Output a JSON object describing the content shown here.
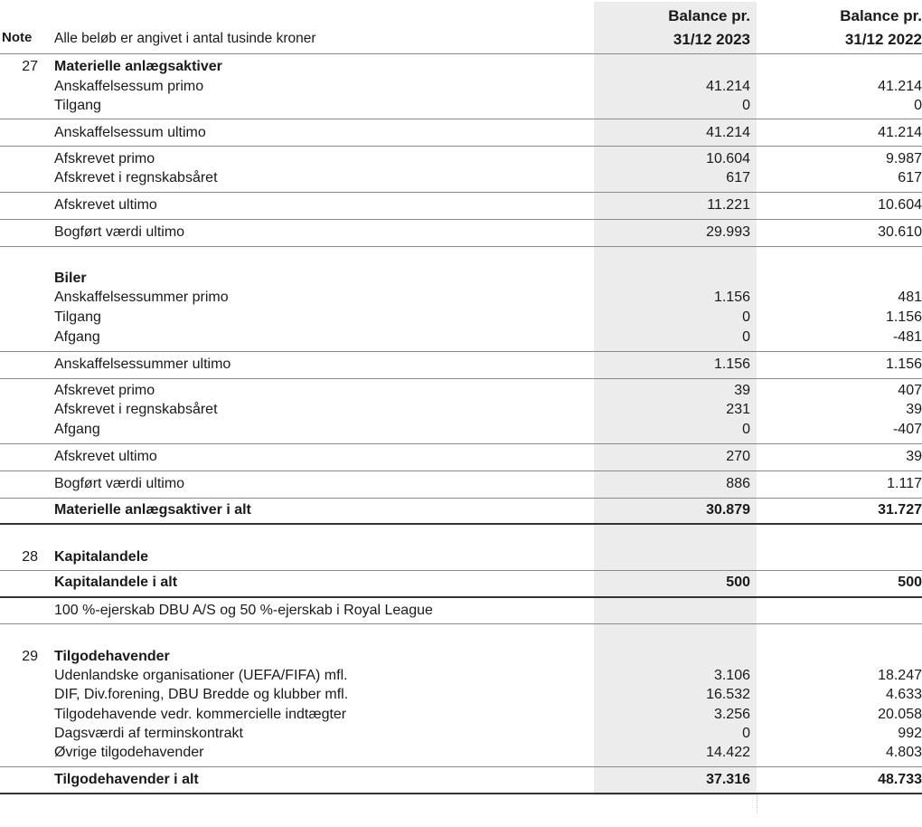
{
  "header": {
    "note_label": "Note",
    "intro": "Alle beløb er angivet i antal tusinde kroner",
    "col_2023_line1": "Balance pr.",
    "col_2023_line2": "31/12 2023",
    "col_2022_line1": "Balance pr.",
    "col_2022_line2": "31/12 2022"
  },
  "colors": {
    "shaded_column": "#ececec",
    "rule": "#8a8a8a",
    "thick_rule": "#333333"
  },
  "rows": [
    {
      "note": "27",
      "label": "Materielle anlægsaktiver",
      "v2023": "",
      "v2022": "",
      "bold": true
    },
    {
      "note": "",
      "label": "Anskaffelsessum primo",
      "v2023": "41.214",
      "v2022": "41.214"
    },
    {
      "note": "",
      "label": "Tilgang",
      "v2023": "0",
      "v2022": "0"
    },
    {
      "note": "",
      "label": "Anskaffelsessum ultimo",
      "v2023": "41.214",
      "v2022": "41.214"
    },
    {
      "note": "",
      "label": "Afskrevet primo",
      "v2023": "10.604",
      "v2022": "9.987"
    },
    {
      "note": "",
      "label": "Afskrevet i regnskabsåret",
      "v2023": "617",
      "v2022": "617"
    },
    {
      "note": "",
      "label": "Afskrevet ultimo",
      "v2023": "11.221",
      "v2022": "10.604"
    },
    {
      "note": "",
      "label": "Bogført værdi ultimo",
      "v2023": "29.993",
      "v2022": "30.610"
    },
    {
      "note": "",
      "label": "Biler",
      "v2023": "",
      "v2022": "",
      "bold": true
    },
    {
      "note": "",
      "label": "Anskaffelsessummer primo",
      "v2023": "1.156",
      "v2022": "481"
    },
    {
      "note": "",
      "label": "Tilgang",
      "v2023": "0",
      "v2022": "1.156"
    },
    {
      "note": "",
      "label": "Afgang",
      "v2023": "0",
      "v2022": "-481"
    },
    {
      "note": "",
      "label": "Anskaffelsessummer ultimo",
      "v2023": "1.156",
      "v2022": "1.156"
    },
    {
      "note": "",
      "label": "Afskrevet primo",
      "v2023": "39",
      "v2022": "407"
    },
    {
      "note": "",
      "label": "Afskrevet i regnskabsåret",
      "v2023": "231",
      "v2022": "39"
    },
    {
      "note": "",
      "label": "Afgang",
      "v2023": "0",
      "v2022": "-407"
    },
    {
      "note": "",
      "label": "Afskrevet ultimo",
      "v2023": "270",
      "v2022": "39"
    },
    {
      "note": "",
      "label": "Bogført værdi ultimo",
      "v2023": "886",
      "v2022": "1.117"
    },
    {
      "note": "",
      "label": "Materielle anlægsaktiver i alt",
      "v2023": "30.879",
      "v2022": "31.727",
      "bold": true
    },
    {
      "note": "28",
      "label": "Kapitalandele",
      "v2023": "",
      "v2022": "",
      "bold": true
    },
    {
      "note": "",
      "label": "Kapitalandele i alt",
      "v2023": "500",
      "v2022": "500",
      "bold": true
    },
    {
      "note": "",
      "label": "100 %-ejerskab DBU A/S og 50 %-ejerskab i Royal League",
      "v2023": "",
      "v2022": ""
    },
    {
      "note": "29",
      "label": "Tilgodehavender",
      "v2023": "",
      "v2022": "",
      "bold": true
    },
    {
      "note": "",
      "label": "Udenlandske organisationer (UEFA/FIFA) mfl.",
      "v2023": "3.106",
      "v2022": "18.247"
    },
    {
      "note": "",
      "label": "DIF, Div.forening, DBU Bredde og klubber mfl.",
      "v2023": "16.532",
      "v2022": "4.633"
    },
    {
      "note": "",
      "label": "Tilgodehavende vedr. kommercielle indtægter",
      "v2023": "3.256",
      "v2022": "20.058"
    },
    {
      "note": "",
      "label": "Dagsværdi af terminskontrakt",
      "v2023": "0",
      "v2022": "992"
    },
    {
      "note": "",
      "label": "Øvrige tilgodehavender",
      "v2023": "14.422",
      "v2022": "4.803"
    },
    {
      "note": "",
      "label": "Tilgodehavender i alt",
      "v2023": "37.316",
      "v2022": "48.733",
      "bold": true
    }
  ]
}
